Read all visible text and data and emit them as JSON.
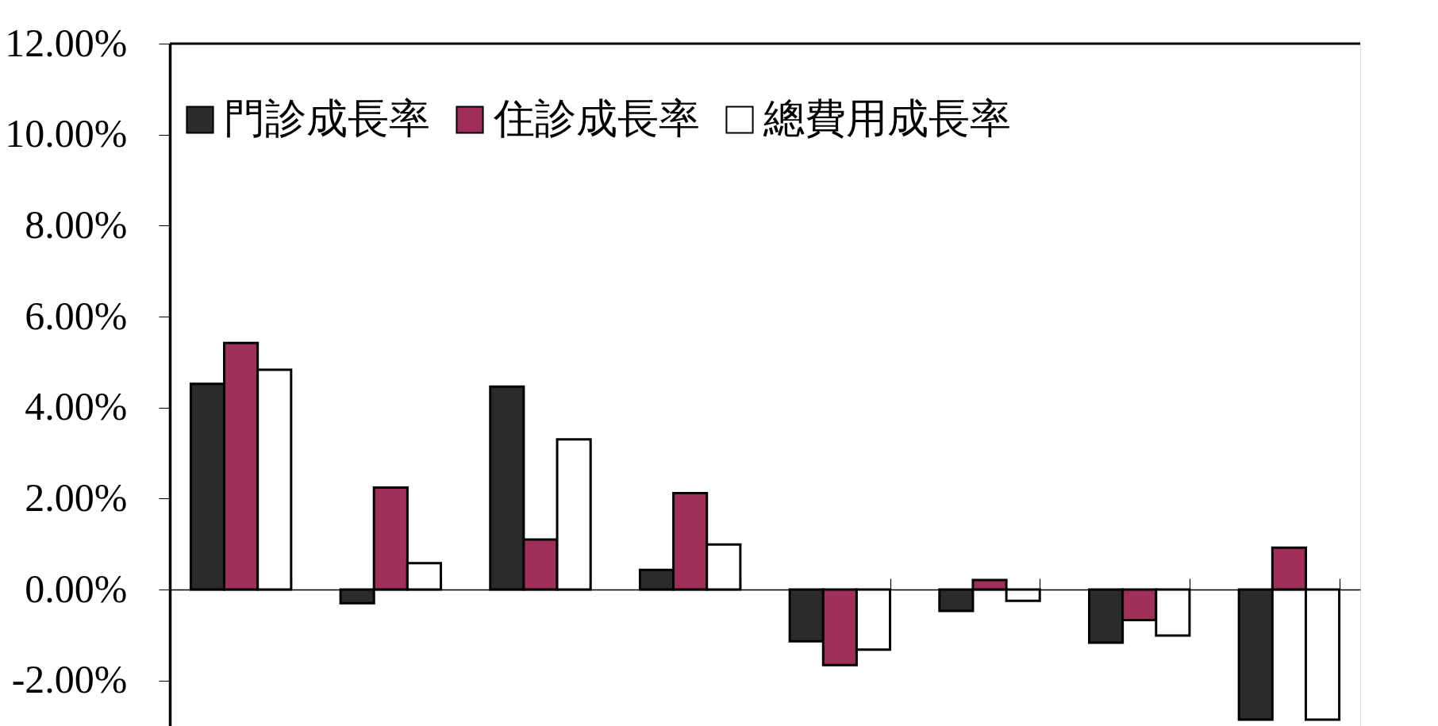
{
  "chart_data": {
    "type": "bar",
    "categories": [
      null,
      null,
      null,
      null,
      null,
      null,
      null,
      null
    ],
    "series": [
      {
        "name": "門診成長率",
        "color": "#2b2b2b",
        "values": [
          4.52,
          -0.3,
          4.46,
          0.43,
          -1.14,
          -0.47,
          -1.17,
          -2.86
        ]
      },
      {
        "name": "住診成長率",
        "color": "#a0305a",
        "values": [
          5.42,
          2.24,
          1.1,
          2.12,
          -1.66,
          0.21,
          -0.67,
          0.92
        ]
      },
      {
        "name": "總費用成長率",
        "color": "#ffffff",
        "values": [
          4.83,
          0.58,
          3.3,
          0.99,
          -1.32,
          -0.25,
          -1.01,
          -2.86
        ]
      }
    ],
    "ylim": [
      -3,
      12
    ],
    "yticks": [
      {
        "value": -2,
        "label": "-2.00%"
      },
      {
        "value": 0,
        "label": "0.00%"
      },
      {
        "value": 2,
        "label": "2.00%"
      },
      {
        "value": 4,
        "label": "4.00%"
      },
      {
        "value": 6,
        "label": "6.00%"
      },
      {
        "value": 8,
        "label": "8.00%"
      },
      {
        "value": 10,
        "label": "10.00%"
      },
      {
        "value": 12,
        "label": "12.00%"
      }
    ],
    "tick_labels": "y",
    "legend": "top left"
  }
}
